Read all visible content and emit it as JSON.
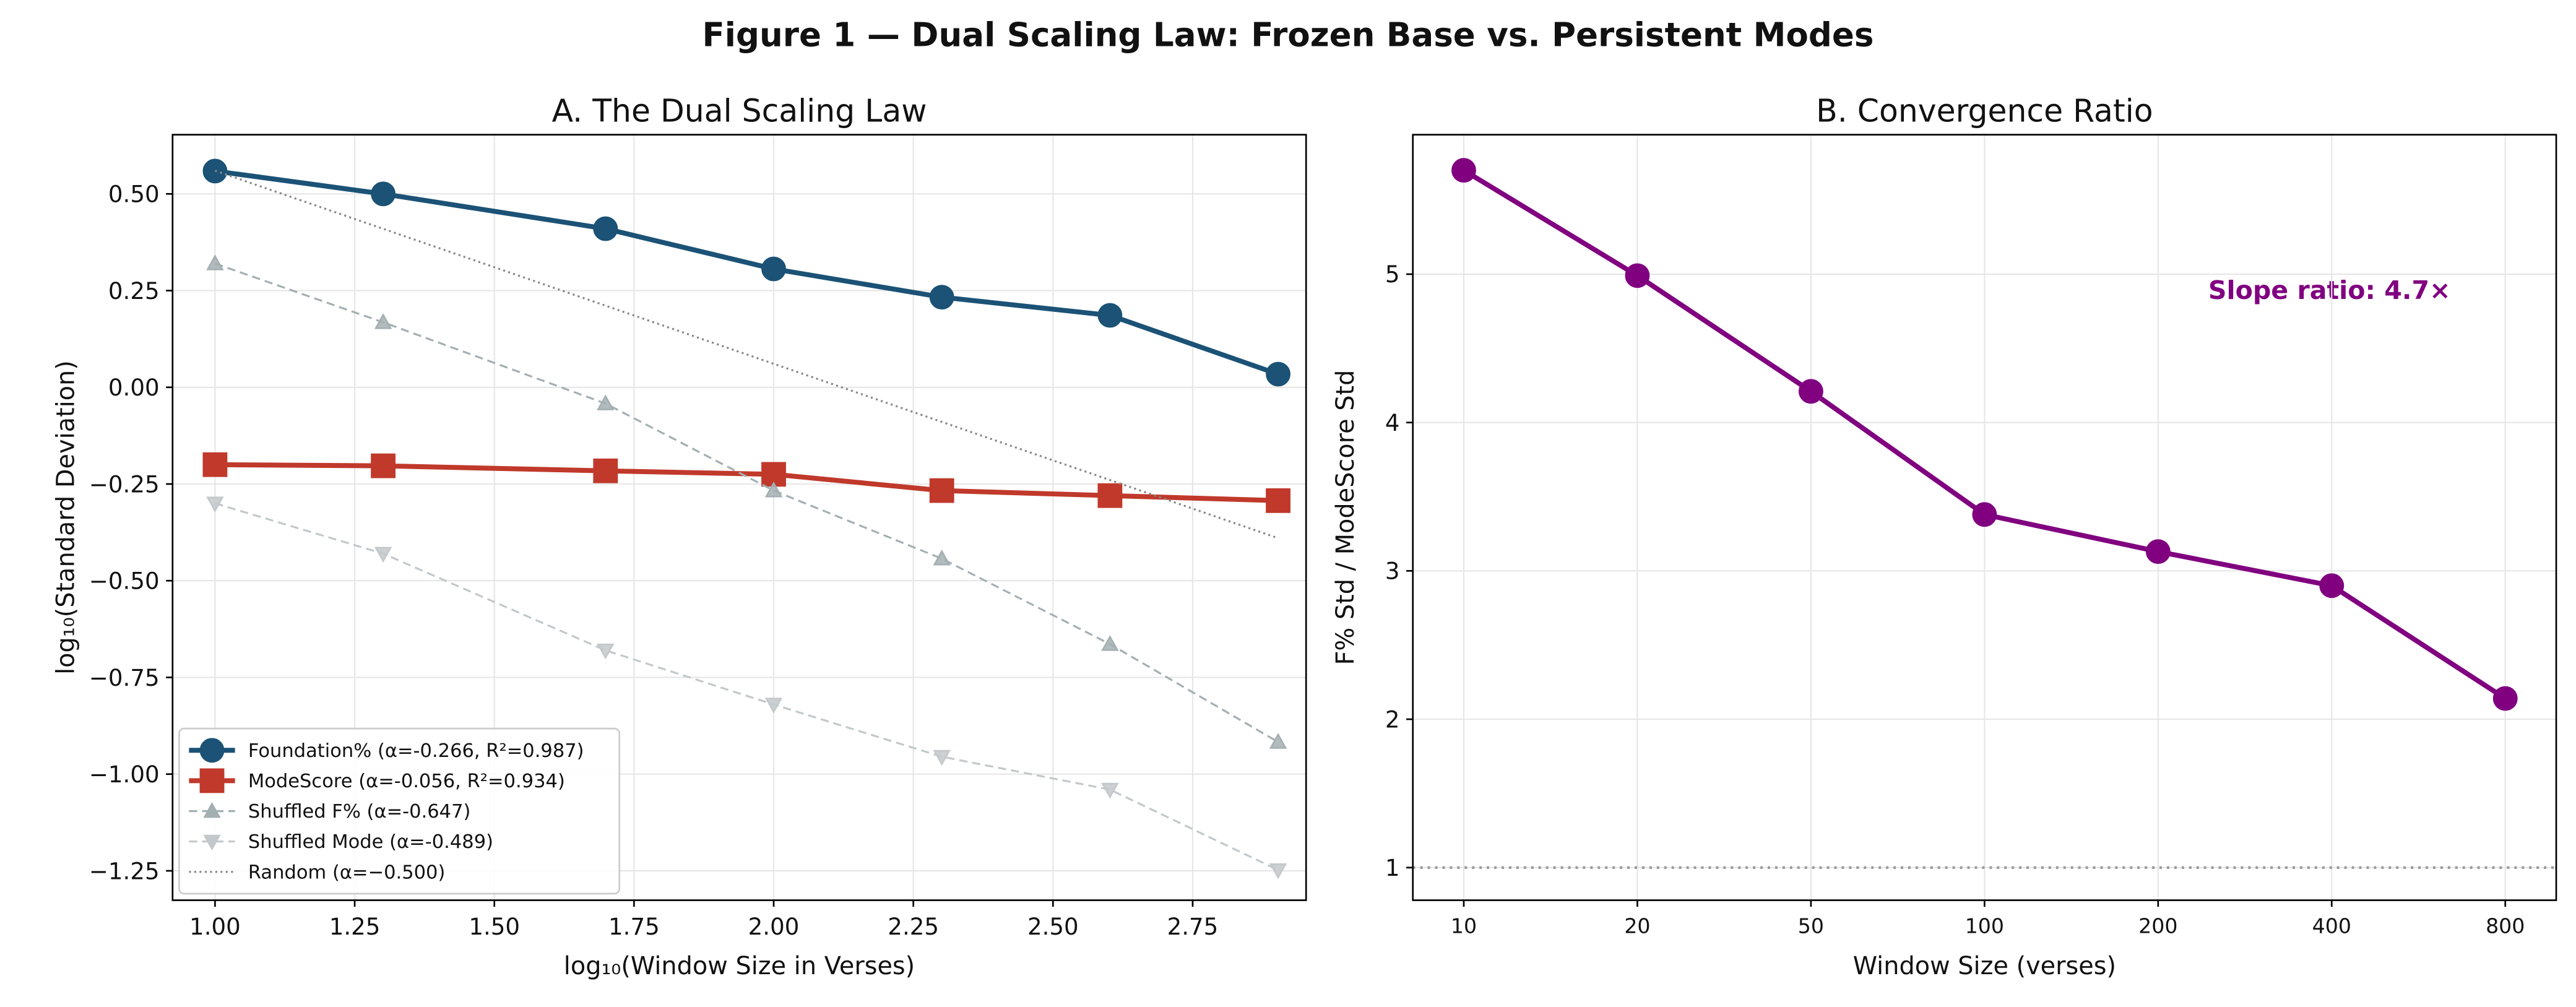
{
  "title": "Figure 1 — Dual Scaling Law: Frozen Base vs. Persistent Modes",
  "chart_data": [
    {
      "type": "line",
      "title": "A. The Dual Scaling Law",
      "x_label": "log₁₀(Window Size in Verses)",
      "y_label": "log₁₀(Standard Deviation)",
      "x": [
        1.0,
        1.301,
        1.699,
        2.0,
        2.301,
        2.602,
        2.903
      ],
      "xlim": [
        0.924,
        2.953
      ],
      "xticks": [
        {
          "value": 1,
          "label": "1.00"
        },
        1.25,
        {
          "value": 1.5,
          "label": "1.50"
        },
        1.75,
        {
          "value": 2,
          "label": "2.00"
        },
        2.25,
        {
          "value": 2.5,
          "label": "2.50"
        },
        2.75
      ],
      "ylim": [
        -1.326,
        0.653
      ],
      "yticks": [
        {
          "value": -1.25,
          "label": "−1.25"
        },
        {
          "value": -1,
          "label": "−1.00"
        },
        {
          "value": -0.75,
          "label": "−0.75"
        },
        {
          "value": -0.5,
          "label": "−0.50"
        },
        {
          "value": -0.25,
          "label": "−0.25"
        },
        {
          "value": 0,
          "label": "0.00"
        },
        0.25,
        {
          "value": 0.5,
          "label": "0.50"
        }
      ],
      "grid": true,
      "legend": "lower left",
      "series": [
        {
          "name": "Foundation% (α=-0.266, R²=0.987)",
          "color": "#1b5276",
          "marker": "o",
          "linestyle": "solid",
          "values": [
            0.559,
            0.5,
            0.41,
            0.306,
            0.233,
            0.186,
            0.034
          ]
        },
        {
          "name": "ModeScore (α=-0.056, R²=0.934)",
          "color": "#c0392b",
          "marker": "s",
          "linestyle": "solid",
          "values": [
            -0.2,
            -0.203,
            -0.216,
            -0.225,
            -0.267,
            -0.28,
            -0.293
          ]
        },
        {
          "name": "Shuffled F% (α=-0.647)",
          "color": "#a4afb2",
          "marker": "^",
          "linestyle": "dashed",
          "values": [
            0.32,
            0.168,
            -0.042,
            -0.267,
            -0.443,
            -0.664,
            -0.917
          ]
        },
        {
          "name": "Shuffled Mode (α=-0.489)",
          "color": "#c3c8ca",
          "marker": "v",
          "linestyle": "dashed",
          "values": [
            -0.3,
            -0.43,
            -0.68,
            -0.82,
            -0.955,
            -1.04,
            -1.248
          ]
        },
        {
          "name": "Random (α=−0.500)",
          "color": "#888888",
          "marker": null,
          "linestyle": "dotted",
          "x": [
            1.0,
            2.903
          ],
          "values": [
            0.56,
            -0.39
          ]
        }
      ]
    },
    {
      "type": "line",
      "title": "B. Convergence Ratio",
      "x_label": "Window Size (verses)",
      "y_label": "F% Std / ModeScore Std",
      "categories": [
        "10",
        "20",
        "50",
        "100",
        "200",
        "400",
        "800"
      ],
      "ylim": [
        0.78,
        5.94
      ],
      "yticks": [
        1,
        2,
        3,
        4,
        5
      ],
      "grid": true,
      "hline": 1,
      "annotation": "Slope ratio: 4.7×",
      "series": [
        {
          "name": null,
          "color": "#800080",
          "marker": "o",
          "linestyle": "solid",
          "values": [
            5.7,
            4.99,
            4.21,
            3.38,
            3.13,
            2.9,
            2.14
          ]
        }
      ]
    }
  ]
}
